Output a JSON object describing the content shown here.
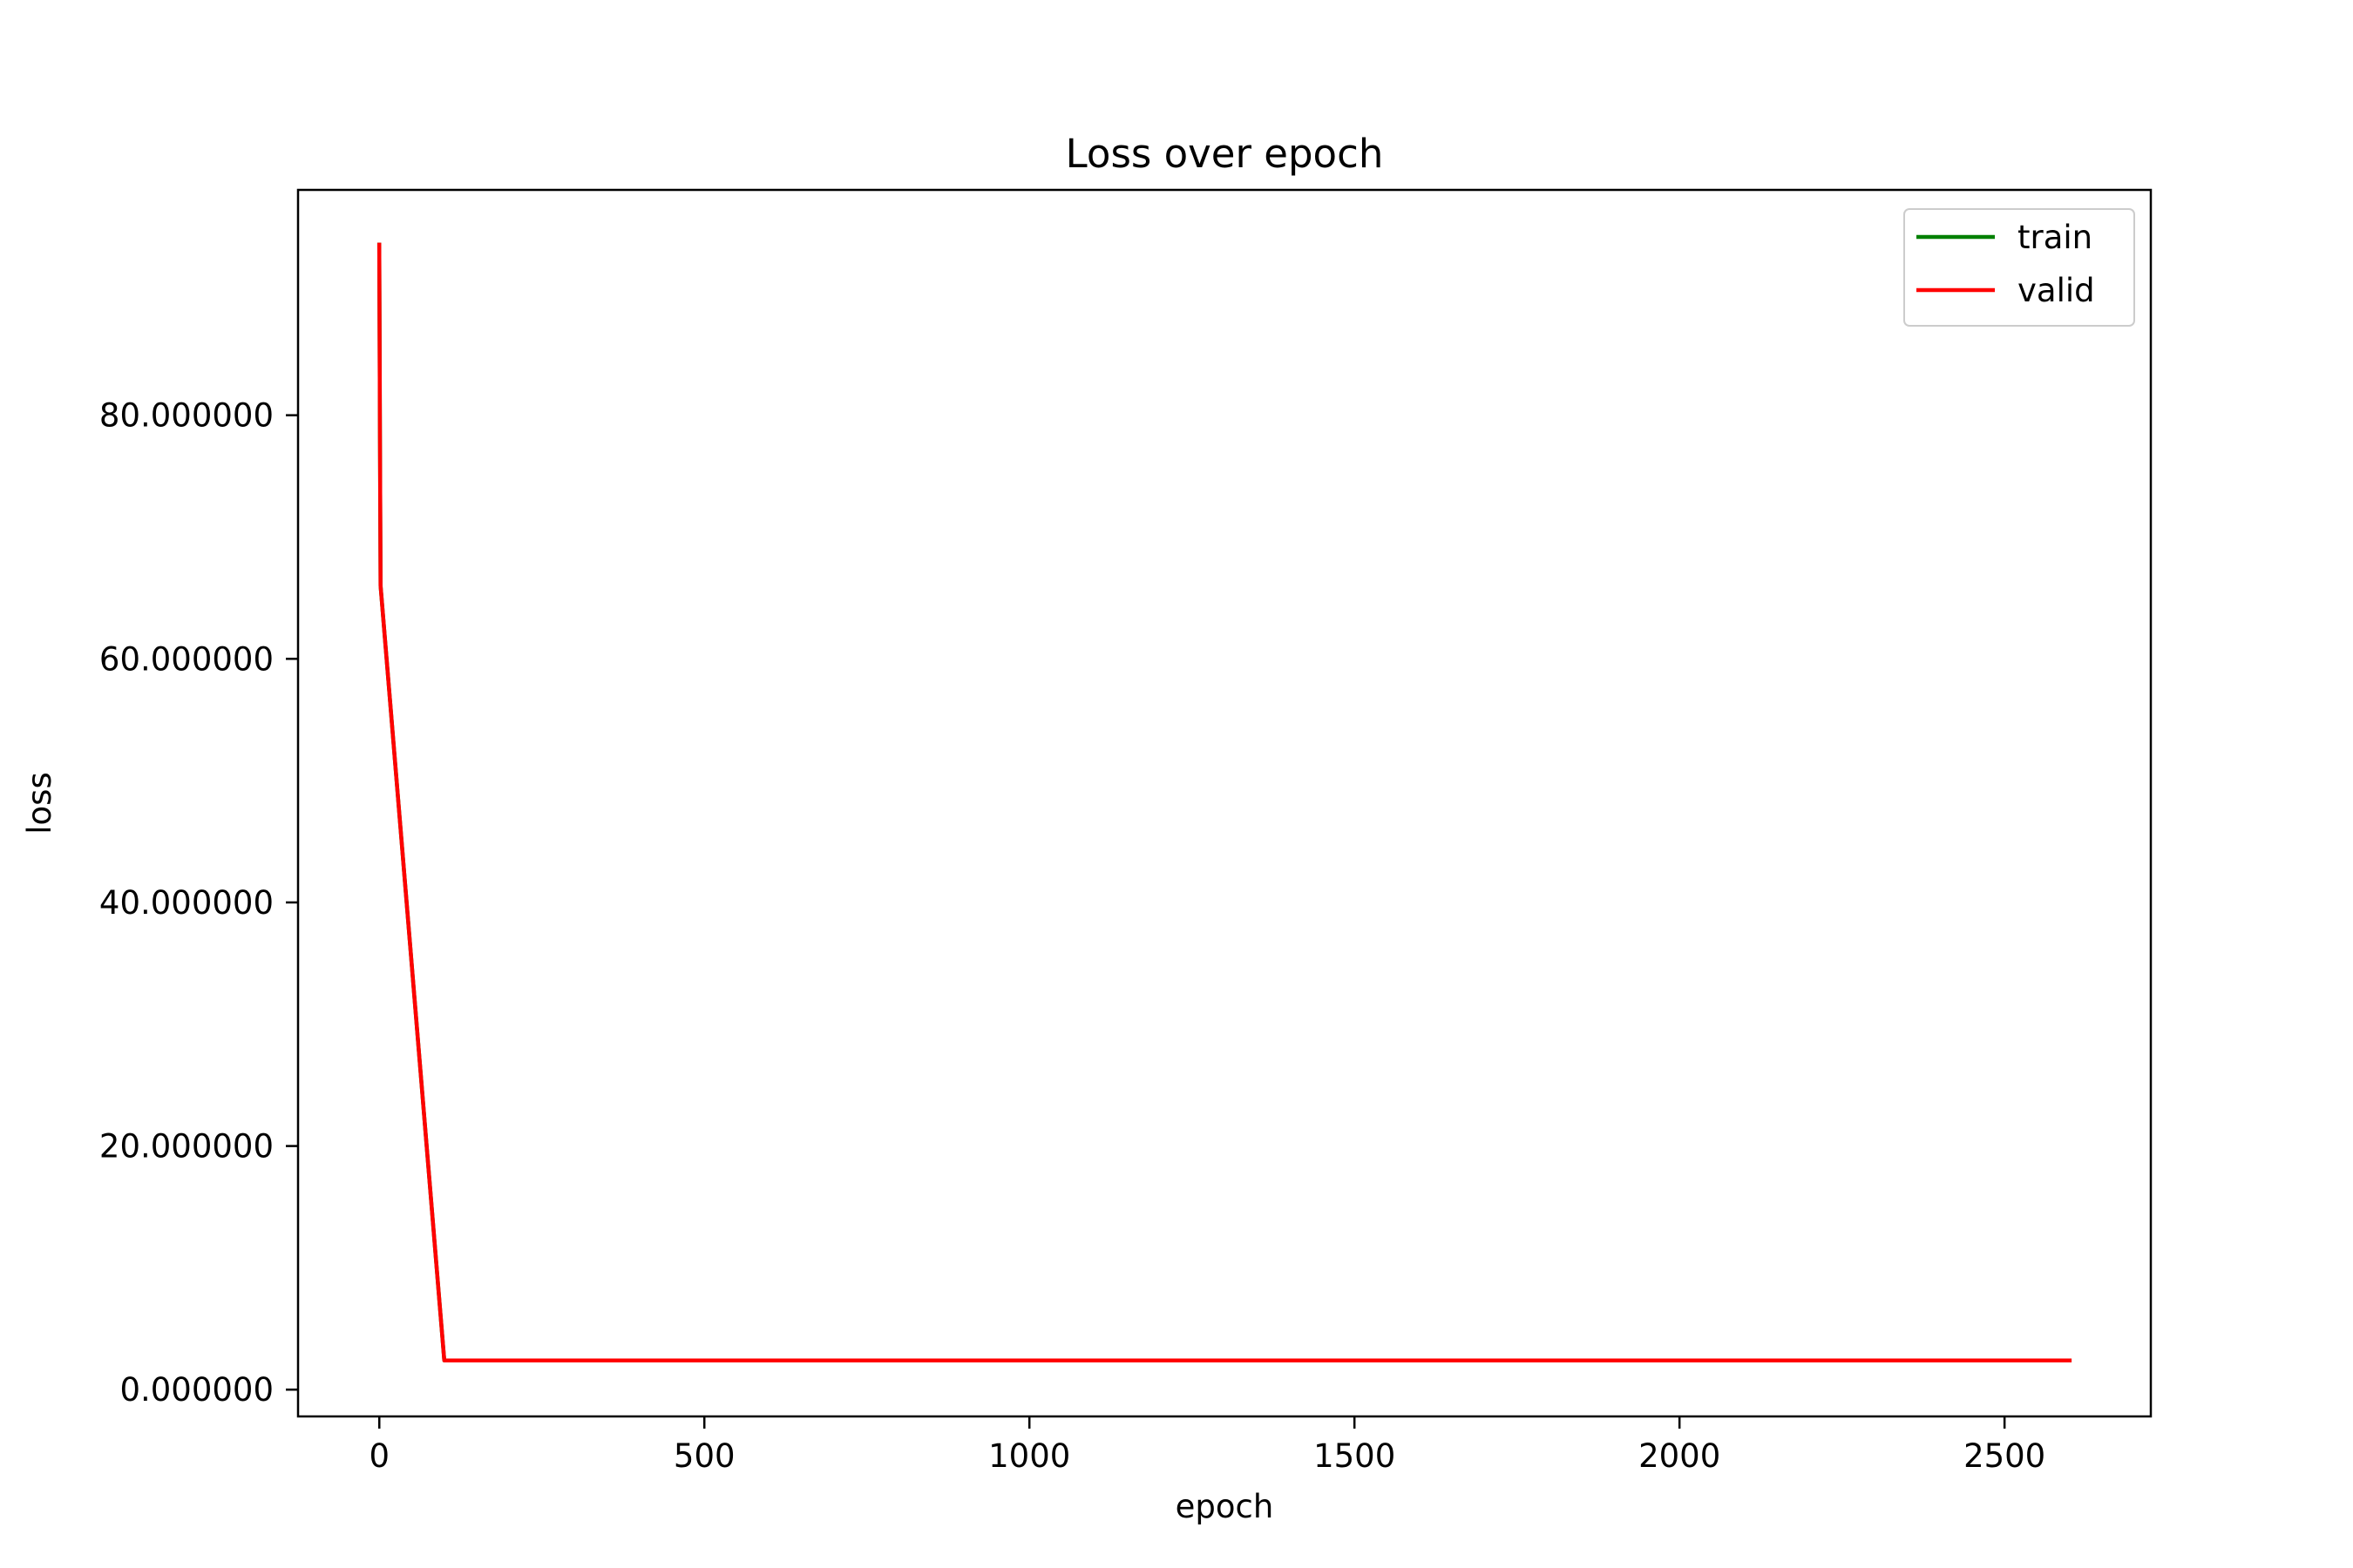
{
  "chart_data": {
    "type": "line",
    "title": "Loss over epoch",
    "xlabel": "epoch",
    "ylabel": "loss",
    "xlim": [
      -125,
      2725
    ],
    "ylim": [
      -2.2,
      98.5
    ],
    "xticks": [
      0,
      500,
      1000,
      1500,
      2000,
      2500
    ],
    "xtick_labels": [
      "0",
      "500",
      "1000",
      "1500",
      "2000",
      "2500"
    ],
    "yticks": [
      0,
      20,
      40,
      60,
      80
    ],
    "ytick_labels": [
      "0.000000",
      "20.000000",
      "40.000000",
      "60.000000",
      "80.000000"
    ],
    "grid": false,
    "legend_position": "top-right",
    "series": [
      {
        "name": "train",
        "color": "#008000",
        "x": [
          0,
          1,
          2,
          100,
          200,
          500,
          1000,
          1500,
          2000,
          2500,
          2600
        ],
        "y": [
          94.0,
          78.0,
          66.0,
          2.4,
          2.4,
          2.4,
          2.4,
          2.4,
          2.4,
          2.4,
          2.4
        ]
      },
      {
        "name": "valid",
        "color": "#ff0000",
        "x": [
          0,
          1,
          2,
          100,
          200,
          500,
          1000,
          1500,
          2000,
          2500,
          2600
        ],
        "y": [
          94.0,
          78.0,
          66.0,
          2.4,
          2.4,
          2.4,
          2.4,
          2.4,
          2.4,
          2.4,
          2.4
        ]
      }
    ]
  }
}
